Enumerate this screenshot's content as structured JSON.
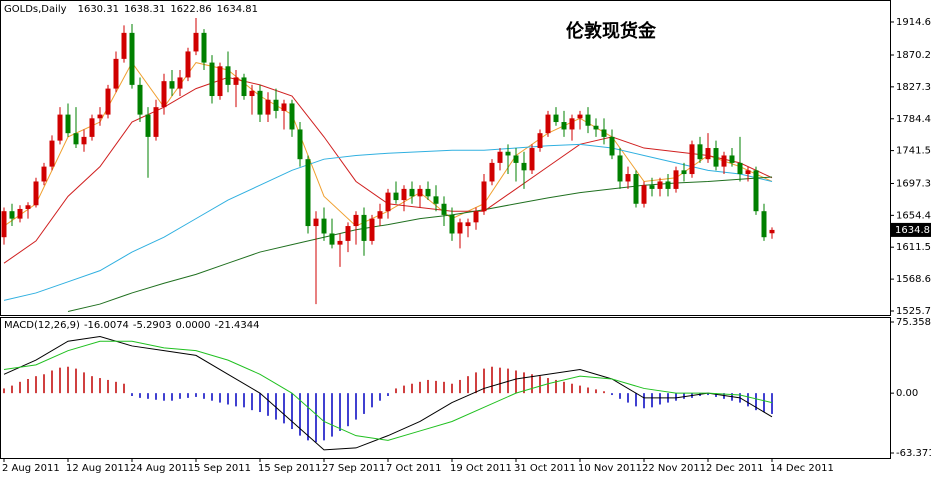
{
  "chart_data": [
    {
      "type": "candlestick",
      "symbol_label": "GOLDs,Daily",
      "title": "伦敦现货金",
      "categories": [
        "2 Aug 2011",
        null,
        null,
        null,
        null,
        null,
        null,
        null,
        "12 Aug 2011",
        null,
        null,
        null,
        null,
        null,
        null,
        null,
        "24 Aug 2011",
        null,
        null,
        null,
        null,
        null,
        null,
        null,
        "5 Sep 2011",
        null,
        null,
        null,
        null,
        null,
        null,
        null,
        "15 Sep 2011",
        null,
        null,
        null,
        null,
        null,
        null,
        null,
        "27 Sep 2011",
        null,
        null,
        null,
        null,
        null,
        null,
        null,
        "7 Oct 2011",
        null,
        null,
        null,
        null,
        null,
        null,
        null,
        "19 Oct 2011",
        null,
        null,
        null,
        null,
        null,
        null,
        null,
        "31 Oct 2011",
        null,
        null,
        null,
        null,
        null,
        null,
        null,
        "10 Nov 2011",
        null,
        null,
        null,
        null,
        null,
        null,
        null,
        "22 Nov 2011",
        null,
        null,
        null,
        null,
        null,
        null,
        null,
        "2 Dec 2011",
        null,
        null,
        null,
        null,
        null,
        null,
        null,
        "14 Dec 2011"
      ],
      "ohlc": [
        [
          1625,
          1665,
          1615,
          1660
        ],
        [
          1660,
          1670,
          1640,
          1650
        ],
        [
          1650,
          1668,
          1645,
          1663
        ],
        [
          1663,
          1672,
          1650,
          1668
        ],
        [
          1668,
          1705,
          1665,
          1700
        ],
        [
          1700,
          1725,
          1695,
          1720
        ],
        [
          1720,
          1762,
          1715,
          1755
        ],
        [
          1755,
          1800,
          1750,
          1790
        ],
        [
          1790,
          1805,
          1760,
          1765
        ],
        [
          1765,
          1800,
          1745,
          1750
        ],
        [
          1750,
          1770,
          1740,
          1760
        ],
        [
          1760,
          1790,
          1755,
          1785
        ],
        [
          1785,
          1800,
          1775,
          1790
        ],
        [
          1790,
          1830,
          1785,
          1825
        ],
        [
          1825,
          1875,
          1820,
          1865
        ],
        [
          1865,
          1910,
          1860,
          1900
        ],
        [
          1900,
          1912,
          1825,
          1830
        ],
        [
          1830,
          1840,
          1780,
          1790
        ],
        [
          1790,
          1800,
          1705,
          1760
        ],
        [
          1760,
          1810,
          1755,
          1800
        ],
        [
          1800,
          1845,
          1790,
          1835
        ],
        [
          1835,
          1850,
          1815,
          1825
        ],
        [
          1825,
          1850,
          1815,
          1840
        ],
        [
          1840,
          1880,
          1835,
          1875
        ],
        [
          1875,
          1920,
          1870,
          1900
        ],
        [
          1900,
          1905,
          1850,
          1860
        ],
        [
          1860,
          1870,
          1805,
          1815
        ],
        [
          1815,
          1860,
          1810,
          1855
        ],
        [
          1855,
          1875,
          1820,
          1830
        ],
        [
          1830,
          1850,
          1800,
          1840
        ],
        [
          1840,
          1845,
          1810,
          1815
        ],
        [
          1815,
          1830,
          1790,
          1822
        ],
        [
          1822,
          1830,
          1780,
          1790
        ],
        [
          1790,
          1820,
          1780,
          1810
        ],
        [
          1810,
          1825,
          1785,
          1795
        ],
        [
          1795,
          1810,
          1770,
          1805
        ],
        [
          1805,
          1810,
          1760,
          1770
        ],
        [
          1770,
          1780,
          1720,
          1730
        ],
        [
          1730,
          1735,
          1630,
          1640
        ],
        [
          1640,
          1660,
          1535,
          1650
        ],
        [
          1650,
          1665,
          1620,
          1630
        ],
        [
          1630,
          1650,
          1610,
          1615
        ],
        [
          1615,
          1630,
          1585,
          1620
        ],
        [
          1620,
          1645,
          1605,
          1640
        ],
        [
          1640,
          1660,
          1615,
          1655
        ],
        [
          1655,
          1665,
          1600,
          1620
        ],
        [
          1620,
          1655,
          1615,
          1650
        ],
        [
          1650,
          1670,
          1640,
          1660
        ],
        [
          1660,
          1690,
          1650,
          1685
        ],
        [
          1685,
          1700,
          1670,
          1675
        ],
        [
          1675,
          1695,
          1660,
          1690
        ],
        [
          1690,
          1700,
          1670,
          1680
        ],
        [
          1680,
          1695,
          1665,
          1690
        ],
        [
          1690,
          1700,
          1675,
          1680
        ],
        [
          1680,
          1695,
          1660,
          1670
        ],
        [
          1670,
          1680,
          1640,
          1655
        ],
        [
          1655,
          1665,
          1620,
          1630
        ],
        [
          1630,
          1650,
          1610,
          1645
        ],
        [
          1640,
          1650,
          1625,
          1645
        ],
        [
          1645,
          1665,
          1635,
          1660
        ],
        [
          1660,
          1710,
          1655,
          1700
        ],
        [
          1700,
          1730,
          1695,
          1725
        ],
        [
          1725,
          1745,
          1715,
          1740
        ],
        [
          1740,
          1750,
          1710,
          1735
        ],
        [
          1735,
          1745,
          1700,
          1725
        ],
        [
          1725,
          1740,
          1690,
          1715
        ],
        [
          1715,
          1750,
          1710,
          1745
        ],
        [
          1745,
          1770,
          1740,
          1765
        ],
        [
          1765,
          1795,
          1760,
          1790
        ],
        [
          1790,
          1800,
          1775,
          1780
        ],
        [
          1780,
          1795,
          1760,
          1770
        ],
        [
          1770,
          1790,
          1755,
          1785
        ],
        [
          1785,
          1795,
          1770,
          1790
        ],
        [
          1790,
          1800,
          1765,
          1775
        ],
        [
          1775,
          1785,
          1760,
          1770
        ],
        [
          1770,
          1785,
          1750,
          1760
        ],
        [
          1760,
          1770,
          1730,
          1735
        ],
        [
          1735,
          1745,
          1690,
          1700
        ],
        [
          1700,
          1720,
          1690,
          1710
        ],
        [
          1710,
          1715,
          1665,
          1670
        ],
        [
          1670,
          1700,
          1665,
          1695
        ],
        [
          1695,
          1705,
          1680,
          1690
        ],
        [
          1690,
          1705,
          1680,
          1700
        ],
        [
          1700,
          1710,
          1680,
          1690
        ],
        [
          1690,
          1720,
          1685,
          1715
        ],
        [
          1715,
          1725,
          1700,
          1710
        ],
        [
          1710,
          1755,
          1705,
          1750
        ],
        [
          1750,
          1760,
          1725,
          1730
        ],
        [
          1730,
          1765,
          1725,
          1745
        ],
        [
          1745,
          1755,
          1715,
          1720
        ],
        [
          1720,
          1740,
          1710,
          1735
        ],
        [
          1735,
          1745,
          1720,
          1725
        ],
        [
          1725,
          1760,
          1700,
          1710
        ],
        [
          1710,
          1720,
          1700,
          1715
        ],
        [
          1715,
          1720,
          1655,
          1660
        ],
        [
          1660,
          1670,
          1620,
          1625
        ],
        [
          1630.31,
          1638.31,
          1622.86,
          1634.81
        ]
      ],
      "up_color": "#d00000",
      "down_color": "#008000",
      "ylim": [
        1520.3,
        1937.5
      ],
      "yticks": [
        1914.65,
        {
          "value": 1870.2,
          "label": "1870.20"
        },
        1827.35,
        {
          "value": 1784.4,
          "label": "1784.40"
        },
        1741.55,
        {
          "value": 1697.3,
          "label": "1697.30"
        },
        {
          "value": 1654.4,
          "label": "1654.40"
        },
        1611.55,
        {
          "value": 1568.6,
          "label": "1568.60"
        },
        {
          "value": 1525.7,
          "label": "1525.70"
        }
      ],
      "grid": false,
      "series": [
        {
          "color": "#f0a030",
          "x": [
            0,
            4,
            8,
            12,
            16,
            20,
            24,
            28,
            32,
            36,
            40,
            44,
            48,
            52,
            56,
            60,
            64,
            68,
            72,
            76,
            80,
            84,
            88,
            92,
            96
          ],
          "values": [
            1640,
            1670,
            1760,
            1780,
            1860,
            1800,
            1860,
            1850,
            1815,
            1790,
            1680,
            1640,
            1660,
            1685,
            1650,
            1670,
            1735,
            1765,
            1785,
            1760,
            1700,
            1705,
            1735,
            1720,
            1700
          ]
        },
        {
          "color": "#d02020",
          "x": [
            0,
            4,
            8,
            12,
            16,
            20,
            24,
            28,
            32,
            36,
            40,
            44,
            48,
            52,
            56,
            60,
            64,
            68,
            72,
            76,
            80,
            84,
            88,
            92,
            96
          ],
          "values": [
            1590,
            1620,
            1680,
            1720,
            1780,
            1800,
            1825,
            1840,
            1830,
            1815,
            1760,
            1700,
            1670,
            1665,
            1660,
            1660,
            1690,
            1720,
            1750,
            1760,
            1745,
            1740,
            1735,
            1725,
            1705
          ]
        },
        {
          "color": "#30b0e0",
          "x": [
            0,
            4,
            8,
            12,
            16,
            20,
            24,
            28,
            32,
            36,
            40,
            44,
            48,
            52,
            56,
            60,
            64,
            68,
            72,
            76,
            80,
            84,
            88,
            92,
            96
          ],
          "values": [
            1540,
            1550,
            1565,
            1580,
            1605,
            1625,
            1650,
            1675,
            1695,
            1715,
            1730,
            1735,
            1738,
            1740,
            1742,
            1742,
            1745,
            1748,
            1750,
            1745,
            1735,
            1725,
            1715,
            1710,
            1700
          ]
        },
        {
          "color": "#207020",
          "x": [
            8,
            12,
            16,
            20,
            24,
            28,
            32,
            36,
            40,
            44,
            48,
            52,
            56,
            60,
            64,
            68,
            72,
            76,
            80,
            84,
            88,
            92,
            96
          ],
          "values": [
            1525,
            1535,
            1550,
            1563,
            1575,
            1590,
            1605,
            1615,
            1625,
            1635,
            1642,
            1650,
            1655,
            1662,
            1670,
            1678,
            1685,
            1690,
            1695,
            1698,
            1700,
            1703,
            1706
          ]
        }
      ]
    },
    {
      "type": "macd",
      "label": "MACD(12,26,9)",
      "header_values": [
        -16.0074,
        -5.2903,
        {
          "value": 0,
          "label": "0.0000"
        },
        -21.4344
      ],
      "ylim": [
        -68.67,
        80.65
      ],
      "yticks": [
        75.3584,
        {
          "value": 0,
          "label": "0.00"
        },
        -63.3715
      ],
      "histogram": {
        "up_color": "#c00000",
        "down_color": "#0000c0",
        "values": [
          5,
          8,
          12,
          15,
          18,
          20,
          24,
          27,
          28,
          26,
          22,
          18,
          16,
          14,
          12,
          10,
          -3,
          -5,
          -6,
          -7,
          -8,
          -8,
          -6,
          -5,
          -4,
          -6,
          -8,
          -10,
          -12,
          -14,
          -15,
          -18,
          -20,
          -24,
          -28,
          -32,
          -38,
          -45,
          -50,
          -52,
          -50,
          -46,
          -40,
          -35,
          -28,
          -22,
          -15,
          -8,
          -3,
          5,
          8,
          10,
          12,
          14,
          13,
          12,
          10,
          14,
          18,
          22,
          26,
          28,
          27,
          26,
          24,
          22,
          20,
          18,
          16,
          14,
          12,
          10,
          8,
          6,
          4,
          2,
          -2,
          -6,
          -10,
          -14,
          -16,
          -15,
          -12,
          -10,
          -8,
          -6,
          -5,
          -3,
          -2,
          -4,
          -6,
          -8,
          -10,
          -14,
          -18,
          -20,
          -22
        ]
      },
      "series": [
        {
          "color": "#000000",
          "x": [
            0,
            4,
            8,
            12,
            16,
            20,
            24,
            28,
            32,
            36,
            40,
            44,
            48,
            52,
            56,
            60,
            64,
            68,
            72,
            76,
            80,
            84,
            88,
            92,
            96
          ],
          "values": [
            20,
            35,
            55,
            60,
            50,
            45,
            40,
            20,
            0,
            -30,
            -60,
            -58,
            -45,
            -30,
            -10,
            5,
            15,
            20,
            25,
            15,
            -5,
            -5,
            0,
            -5,
            -25
          ]
        },
        {
          "color": "#20c020",
          "x": [
            0,
            4,
            8,
            12,
            16,
            20,
            24,
            28,
            32,
            36,
            40,
            44,
            48,
            52,
            56,
            60,
            64,
            68,
            72,
            76,
            80,
            84,
            88,
            92,
            96
          ],
          "values": [
            25,
            30,
            45,
            55,
            55,
            48,
            45,
            35,
            20,
            0,
            -30,
            -45,
            -50,
            -40,
            -30,
            -15,
            0,
            10,
            18,
            15,
            5,
            0,
            0,
            -2,
            -10
          ]
        }
      ]
    }
  ]
}
